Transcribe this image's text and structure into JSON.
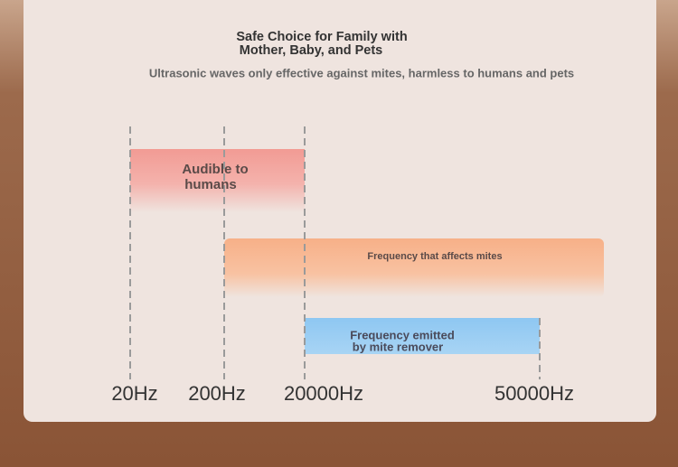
{
  "header": {
    "title_lines": [
      "Safe Choice for Family with",
      "Mother, Baby, and Pets"
    ],
    "subtitle": "Ultrasonic waves only effective against mites, harmless to humans and pets"
  },
  "bands": [
    {
      "label_lines": [
        "Audible to",
        "humans"
      ]
    },
    {
      "label_lines": [
        "Frequency that affects mites"
      ]
    },
    {
      "label_lines": [
        "Frequency emitted",
        "by mite remover"
      ]
    }
  ],
  "axis_labels": [
    "20Hz",
    "200Hz",
    "20000Hz",
    "50000Hz"
  ]
}
